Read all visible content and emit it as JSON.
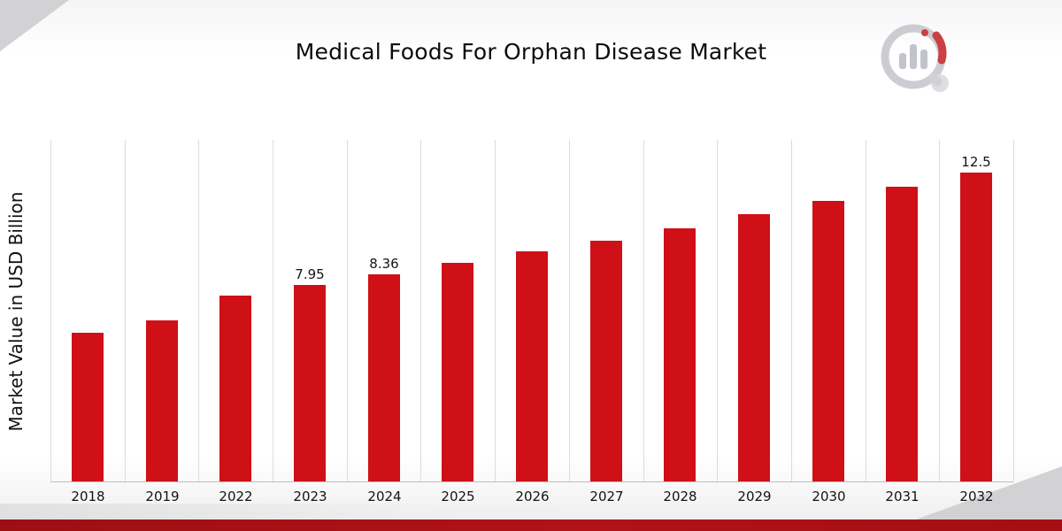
{
  "page": {
    "title": "Medical Foods For Orphan Disease Market"
  },
  "chart_data": {
    "type": "bar",
    "title": "Medical Foods For Orphan Disease Market",
    "xlabel": "",
    "ylabel": "Market Value in USD Billion",
    "categories": [
      "2018",
      "2019",
      "2022",
      "2023",
      "2024",
      "2025",
      "2026",
      "2027",
      "2028",
      "2029",
      "2030",
      "2031",
      "2032"
    ],
    "values": [
      6.0,
      6.5,
      7.5,
      7.95,
      8.36,
      8.85,
      9.3,
      9.75,
      10.25,
      10.8,
      11.35,
      11.9,
      12.5
    ],
    "data_labels": [
      "",
      "",
      "",
      "7.95",
      "8.36",
      "",
      "",
      "",
      "",
      "",
      "",
      "",
      "12.5"
    ],
    "ylim": [
      0,
      13.85
    ],
    "bar_color": "#cf1016",
    "grid": "vertical",
    "legend": "none"
  },
  "decor": {
    "accent_red": "#a30f14",
    "corner_gray": "#d2d2d5",
    "logo_icon": "bar-chart-magnifier-logo"
  }
}
